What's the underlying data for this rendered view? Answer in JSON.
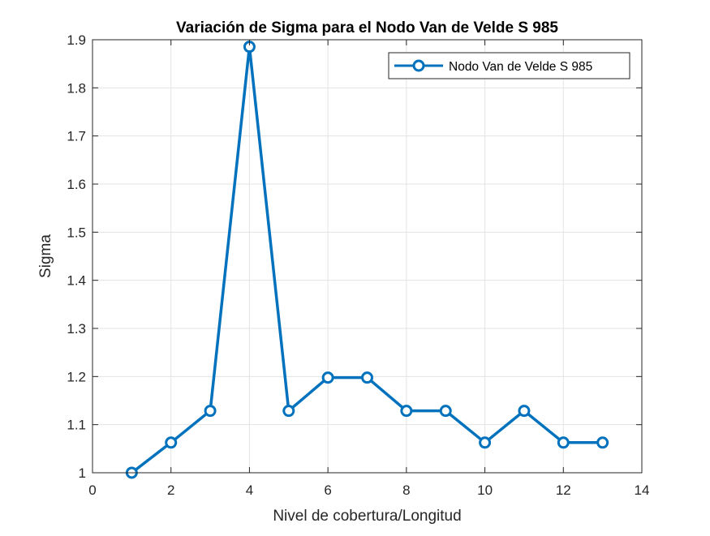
{
  "chart_data": {
    "type": "line",
    "title": "Variación de Sigma para el Nodo Van de Velde S 985",
    "xlabel": "Nivel de cobertura/Longitud",
    "ylabel": "Sigma",
    "xlim": [
      0,
      14
    ],
    "ylim": [
      1,
      1.9
    ],
    "xticks": [
      0,
      2,
      4,
      6,
      8,
      10,
      12,
      14
    ],
    "yticks": [
      1,
      1.1,
      1.2,
      1.3,
      1.4,
      1.5,
      1.6,
      1.7,
      1.8,
      1.9
    ],
    "xtick_labels": [
      "0",
      "2",
      "4",
      "6",
      "8",
      "10",
      "12",
      "14"
    ],
    "ytick_labels": [
      "1",
      "1.1",
      "1.2",
      "1.3",
      "1.4",
      "1.5",
      "1.6",
      "1.7",
      "1.8",
      "1.9"
    ],
    "grid": true,
    "legend_position": "top-right",
    "series": [
      {
        "name": "Nodo Van de Velde S 985",
        "color": "#0072BD",
        "marker": "circle",
        "x": [
          1,
          2,
          3,
          4,
          5,
          6,
          7,
          8,
          9,
          10,
          11,
          12,
          13
        ],
        "y": [
          1.0,
          1.0627,
          1.1287,
          1.8854,
          1.1287,
          1.1978,
          1.1978,
          1.1287,
          1.1287,
          1.0627,
          1.1287,
          1.0627,
          1.0627
        ]
      }
    ]
  }
}
